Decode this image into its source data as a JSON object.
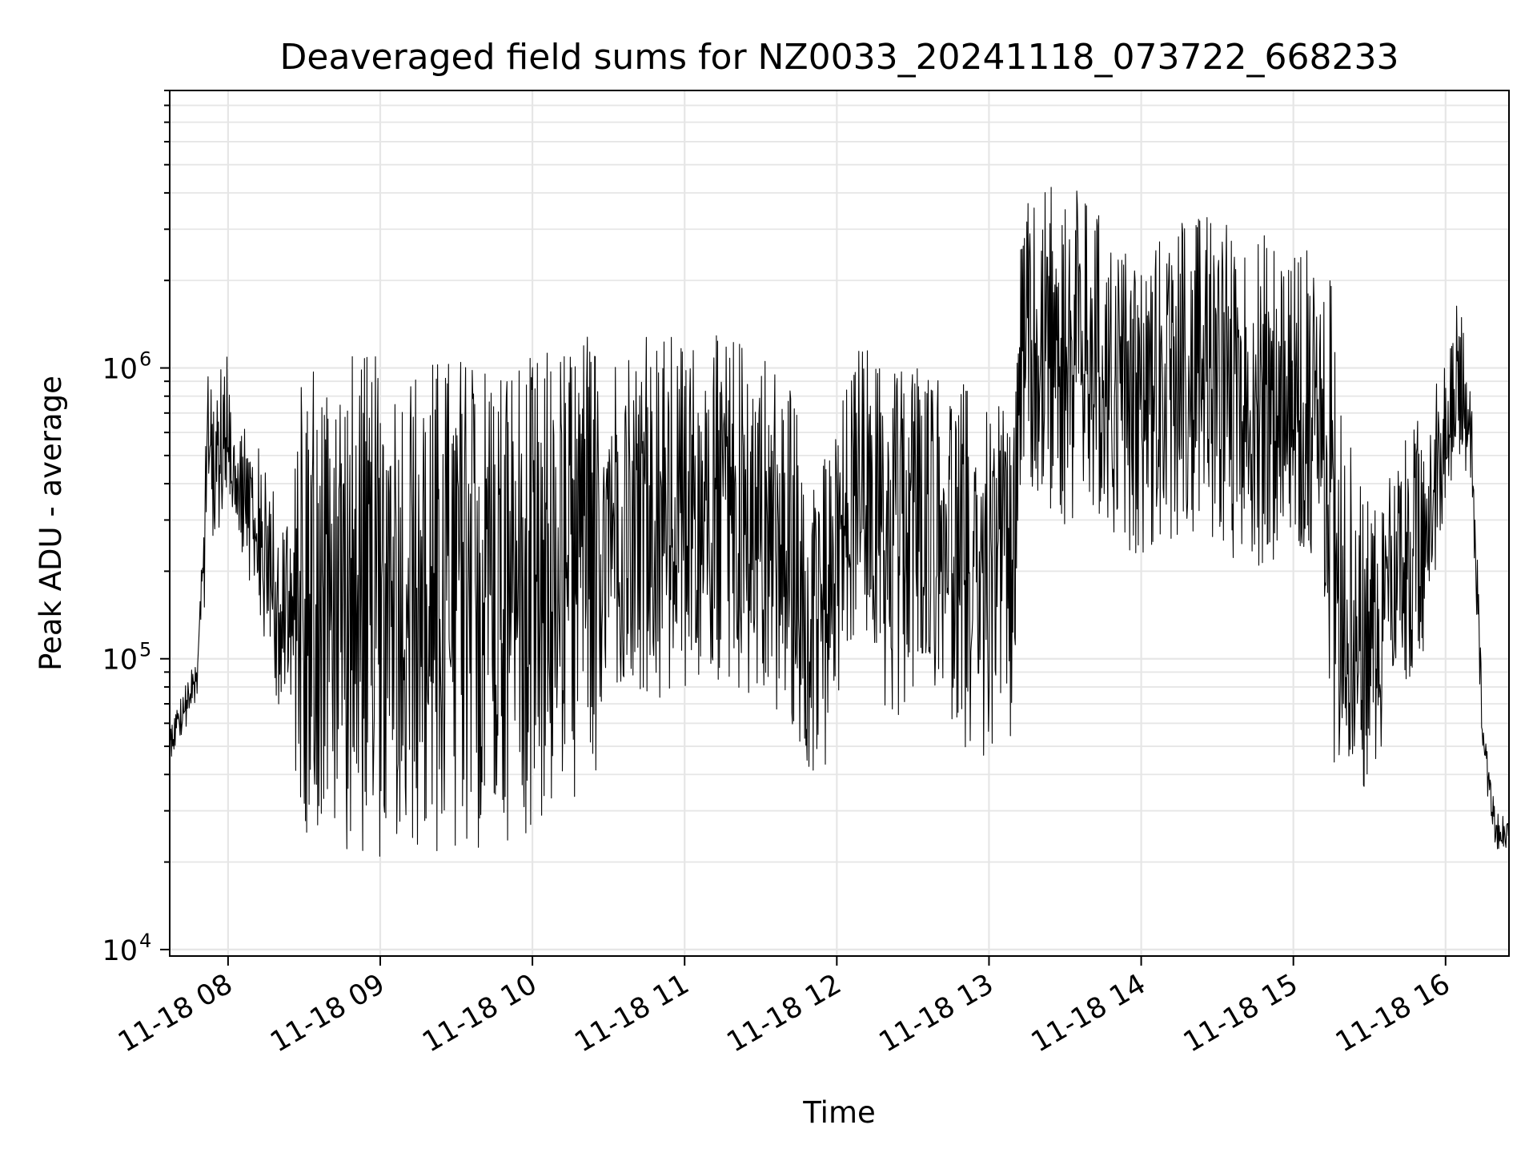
{
  "chart_data": {
    "type": "line",
    "title": "Deaveraged field sums for NZ0033_20241118_073722_668233",
    "xlabel": "Time",
    "ylabel": "Peak ADU - average",
    "yscale": "log",
    "ylim": [
      9500,
      9000000
    ],
    "xlim": [
      "2024-11-18 07:37",
      "2024-11-18 16:25"
    ],
    "grid": true,
    "x_ticks": [
      "11-18 08",
      "11-18 09",
      "11-18 10",
      "11-18 11",
      "11-18 12",
      "11-18 13",
      "11-18 14",
      "11-18 15",
      "11-18 16"
    ],
    "y_ticks": [
      {
        "value": 10000,
        "base": "10",
        "exp": "4"
      },
      {
        "value": 100000,
        "base": "10",
        "exp": "5"
      },
      {
        "value": 1000000,
        "base": "10",
        "exp": "6"
      }
    ],
    "series": [
      {
        "color": "#000000",
        "envelope": {
          "x": [
            "07:37",
            "07:45",
            "07:48",
            "07:52",
            "08:00",
            "08:03",
            "08:10",
            "08:18",
            "08:25",
            "08:30",
            "08:45",
            "09:00",
            "09:15",
            "09:30",
            "09:45",
            "10:00",
            "10:15",
            "10:25",
            "10:30",
            "10:40",
            "10:50",
            "11:00",
            "11:15",
            "11:30",
            "11:35",
            "11:45",
            "11:55",
            "12:00",
            "12:10",
            "12:20",
            "12:30",
            "12:40",
            "12:50",
            "13:00",
            "13:10",
            "13:12",
            "13:20",
            "13:30",
            "13:40",
            "13:50",
            "14:00",
            "14:15",
            "14:30",
            "14:45",
            "15:00",
            "15:10",
            "15:15",
            "15:20",
            "15:30",
            "15:40",
            "15:50",
            "16:00",
            "16:05",
            "16:10",
            "16:15",
            "16:20",
            "16:25"
          ],
          "low": [
            45000,
            60000,
            75000,
            200000,
            350000,
            300000,
            150000,
            80000,
            45000,
            25000,
            22000,
            20000,
            21000,
            19000,
            23000,
            25000,
            30000,
            38000,
            80000,
            65000,
            60000,
            75000,
            80000,
            70000,
            65000,
            40000,
            38000,
            60000,
            140000,
            55000,
            70000,
            75000,
            50000,
            42000,
            45000,
            350000,
            300000,
            260000,
            280000,
            220000,
            230000,
            250000,
            240000,
            190000,
            210000,
            180000,
            45000,
            40000,
            33000,
            55000,
            90000,
            350000,
            500000,
            400000,
            40000,
            22000,
            22000
          ],
          "high": [
            60000,
            90000,
            100000,
            1000000,
            1100000,
            700000,
            600000,
            400000,
            350000,
            1200000,
            1200000,
            1100000,
            1100000,
            1150000,
            1200000,
            1100000,
            1300000,
            1400000,
            1200000,
            1300000,
            1350000,
            1300000,
            1300000,
            1300000,
            1100000,
            800000,
            500000,
            700000,
            1300000,
            1000000,
            1200000,
            1000000,
            900000,
            700000,
            800000,
            3500000,
            4000000,
            4500000,
            3800000,
            2800000,
            2500000,
            3300000,
            3500000,
            3000000,
            2800000,
            2500000,
            2000000,
            600000,
            400000,
            500000,
            700000,
            1200000,
            1800000,
            900000,
            60000,
            30000,
            28000
          ]
        }
      }
    ]
  }
}
